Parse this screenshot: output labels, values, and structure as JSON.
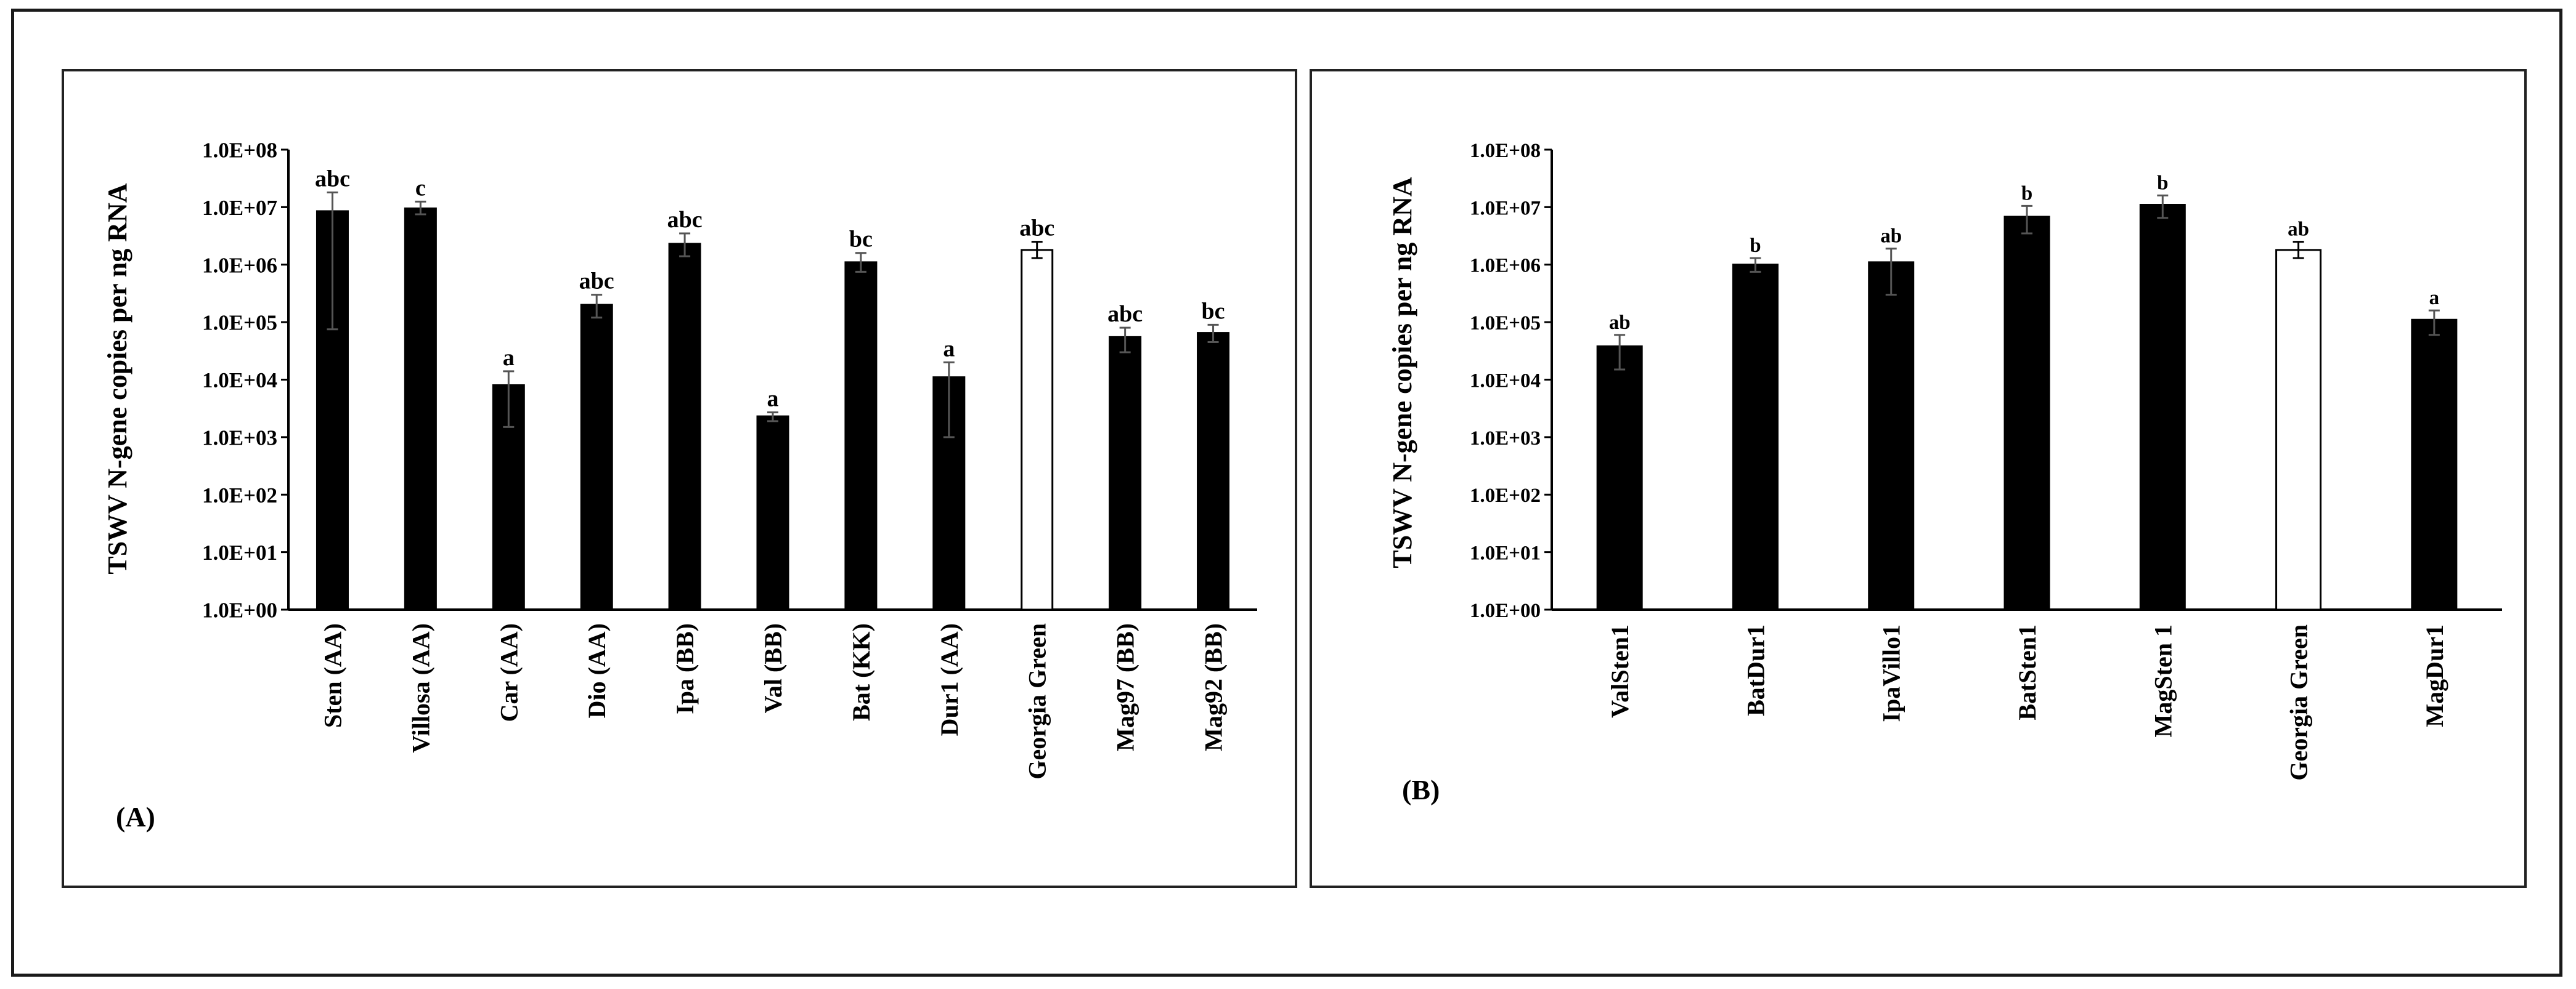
{
  "colors": {
    "bar_default": "#000000",
    "bar_highlight": "#ffffff",
    "bar_stroke": "#000000",
    "axis": "#000000"
  },
  "chart_data": [
    {
      "type": "bar",
      "panel_label": "(A)",
      "title": "",
      "xlabel": "",
      "ylabel": "TSWV N-gene copies per ng  RNA",
      "yscale": "log",
      "ylim": [
        1,
        100000000
      ],
      "y_tick_labels": [
        "1.0E+00",
        "1.0E+01",
        "1.0E+02",
        "1.0E+03",
        "1.0E+04",
        "1.0E+05",
        "1.0E+06",
        "1.0E+07",
        "1.0E+08"
      ],
      "categories": [
        "Sten (AA)",
        "Villosa (AA)",
        "Car (AA)",
        "Dio (AA)",
        "Ipa (BB)",
        "Val (BB)",
        "Bat (KK)",
        "Dur1 (AA)",
        "Georgia Green",
        "Mag97 (BB)",
        "Mag92 (BB)"
      ],
      "values": [
        8500000,
        9500000,
        8000,
        200000,
        2300000,
        2300,
        1100000,
        11000,
        1800000,
        55000,
        65000
      ],
      "error_low": [
        75000,
        7500000,
        1500,
        120000,
        1400000,
        1900,
        750000,
        1000,
        1300000,
        30000,
        45000
      ],
      "error_high": [
        18000000,
        12500000,
        14000,
        300000,
        3500000,
        2700,
        1600000,
        20000,
        2500000,
        80000,
        90000
      ],
      "significance": [
        "abc",
        "c",
        "a",
        "abc",
        "abc",
        "a",
        "bc",
        "a",
        "abc",
        "abc",
        "bc"
      ],
      "highlight": [
        false,
        false,
        false,
        false,
        false,
        false,
        false,
        false,
        true,
        false,
        false
      ]
    },
    {
      "type": "bar",
      "panel_label": "(B)",
      "title": "",
      "xlabel": "",
      "ylabel": "TSWV N-gene copies per ng  RNA",
      "yscale": "log",
      "ylim": [
        1,
        100000000
      ],
      "y_tick_labels": [
        "1.0E+00",
        "1.0E+01",
        "1.0E+02",
        "1.0E+03",
        "1.0E+04",
        "1.0E+05",
        "1.0E+06",
        "1.0E+07",
        "1.0E+08"
      ],
      "categories": [
        "ValSten1",
        "BatDur1",
        "IpaVillo1",
        "BatSten1",
        "MagSten 1",
        "Georgia Green",
        "MagDur1"
      ],
      "values": [
        38000,
        1000000,
        1100000,
        6800000,
        11000000,
        1800000,
        110000
      ],
      "error_low": [
        15000,
        750000,
        300000,
        3500000,
        6500000,
        1300000,
        60000
      ],
      "error_high": [
        60000,
        1300000,
        1900000,
        10500000,
        16000000,
        2500000,
        160000
      ],
      "significance": [
        "ab",
        "b",
        "ab",
        "b",
        "b",
        "ab",
        "a"
      ],
      "highlight": [
        false,
        false,
        false,
        false,
        false,
        true,
        false
      ]
    }
  ]
}
